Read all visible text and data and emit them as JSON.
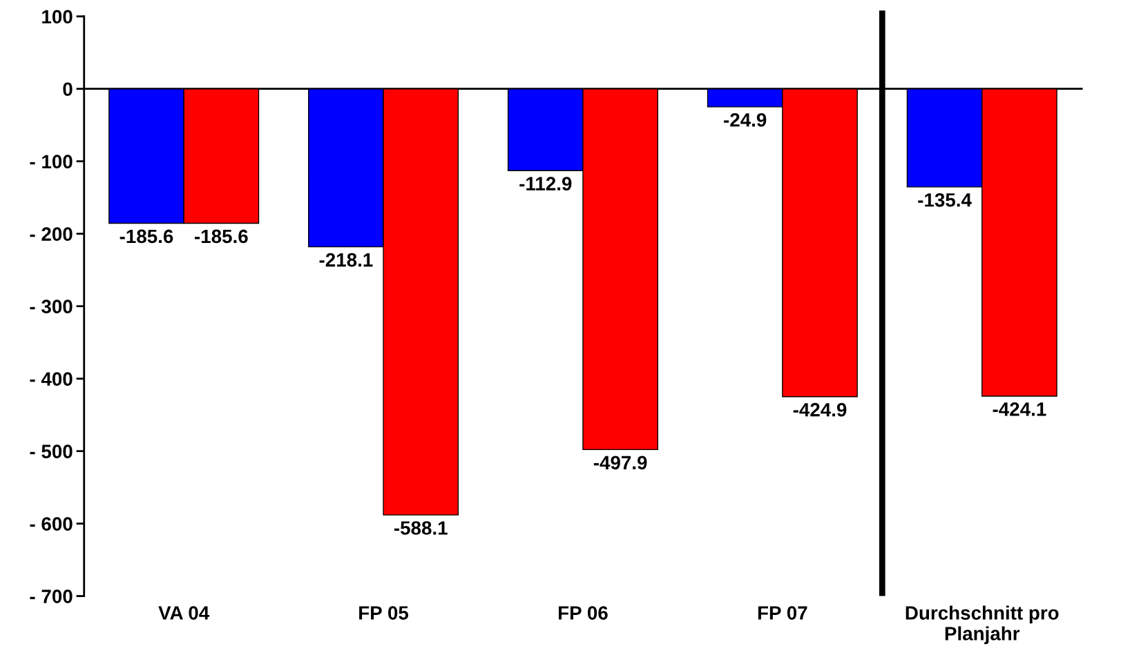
{
  "chart_data": {
    "type": "bar",
    "categories": [
      "VA 04",
      "FP 05",
      "FP 06",
      "FP 07",
      "Durchschnitt pro Planjahr"
    ],
    "series": [
      {
        "color": "#0000ff",
        "values": [
          -185.6,
          -218.1,
          -112.9,
          -24.9,
          -135.4
        ]
      },
      {
        "color": "#ff0000",
        "values": [
          -185.6,
          -588.1,
          -497.9,
          -424.9,
          -424.1
        ]
      }
    ],
    "ylim": [
      -700,
      100
    ],
    "yticks": [
      {
        "value": -700,
        "label": "- 700"
      },
      {
        "value": -600,
        "label": "- 600"
      },
      {
        "value": -500,
        "label": "- 500"
      },
      {
        "value": -400,
        "label": "- 400"
      },
      {
        "value": -300,
        "label": "- 300"
      },
      {
        "value": -200,
        "label": "- 200"
      },
      {
        "value": -100,
        "label": "- 100"
      },
      0,
      100
    ],
    "data_labels": true,
    "legend": false
  }
}
